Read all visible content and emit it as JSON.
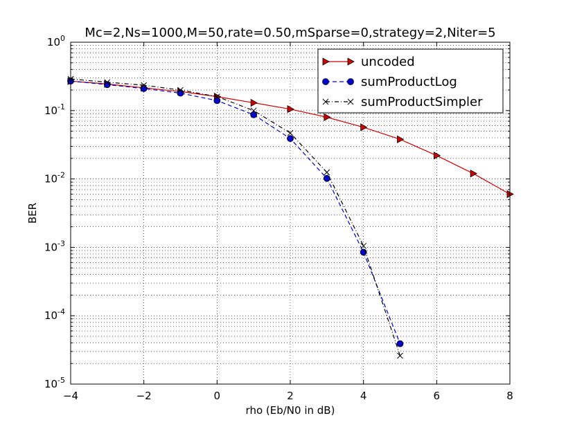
{
  "chart_data": {
    "type": "line",
    "title": "Mc=2,Ns=1000,M=50,rate=0.50,mSparse=0,strategy=2,Niter=5",
    "xlabel": "rho (Eb/N0 in dB)",
    "ylabel": "BER",
    "xlim": [
      -4,
      8
    ],
    "ylim": [
      1e-05,
      1
    ],
    "yscale": "log",
    "grid": true,
    "legend_position": "top-right",
    "x_ticks": [
      "−4",
      "−2",
      "0",
      "2",
      "4",
      "6",
      "8"
    ],
    "x_tick_values": [
      -4,
      -2,
      0,
      2,
      4,
      6,
      8
    ],
    "y_ticks": [
      {
        "base": "10",
        "exp": "-5",
        "value": 1e-05
      },
      {
        "base": "10",
        "exp": "-4",
        "value": 0.0001
      },
      {
        "base": "10",
        "exp": "-3",
        "value": 0.001
      },
      {
        "base": "10",
        "exp": "-2",
        "value": 0.01
      },
      {
        "base": "10",
        "exp": "-1",
        "value": 0.1
      },
      {
        "base": "10",
        "exp": "0",
        "value": 1
      }
    ],
    "series": [
      {
        "name": "uncoded",
        "color": "#cc0000",
        "marker": "triangle-right",
        "line_style": "solid",
        "x": [
          -4,
          -3,
          -2,
          -1,
          0,
          1,
          2,
          3,
          4,
          5,
          6,
          7,
          8
        ],
        "y": [
          0.27,
          0.245,
          0.215,
          0.19,
          0.16,
          0.13,
          0.105,
          0.08,
          0.057,
          0.038,
          0.022,
          0.012,
          0.006
        ]
      },
      {
        "name": "sumProductLog",
        "color": "#0000cc",
        "marker": "circle",
        "line_style": "dashed",
        "x": [
          -4,
          -3,
          -2,
          -1,
          0,
          1,
          2,
          3,
          4,
          5
        ],
        "y": [
          0.27,
          0.24,
          0.21,
          0.18,
          0.14,
          0.087,
          0.039,
          0.0102,
          0.00085,
          3.9e-05
        ]
      },
      {
        "name": "sumProductSimpler",
        "color": "#000000",
        "marker": "x",
        "line_style": "dashdot",
        "x": [
          -4,
          -3,
          -2,
          -1,
          0,
          1,
          2,
          3,
          4,
          5
        ],
        "y": [
          0.29,
          0.26,
          0.235,
          0.2,
          0.16,
          0.1,
          0.047,
          0.0125,
          0.00105,
          2.6e-05
        ]
      }
    ]
  }
}
